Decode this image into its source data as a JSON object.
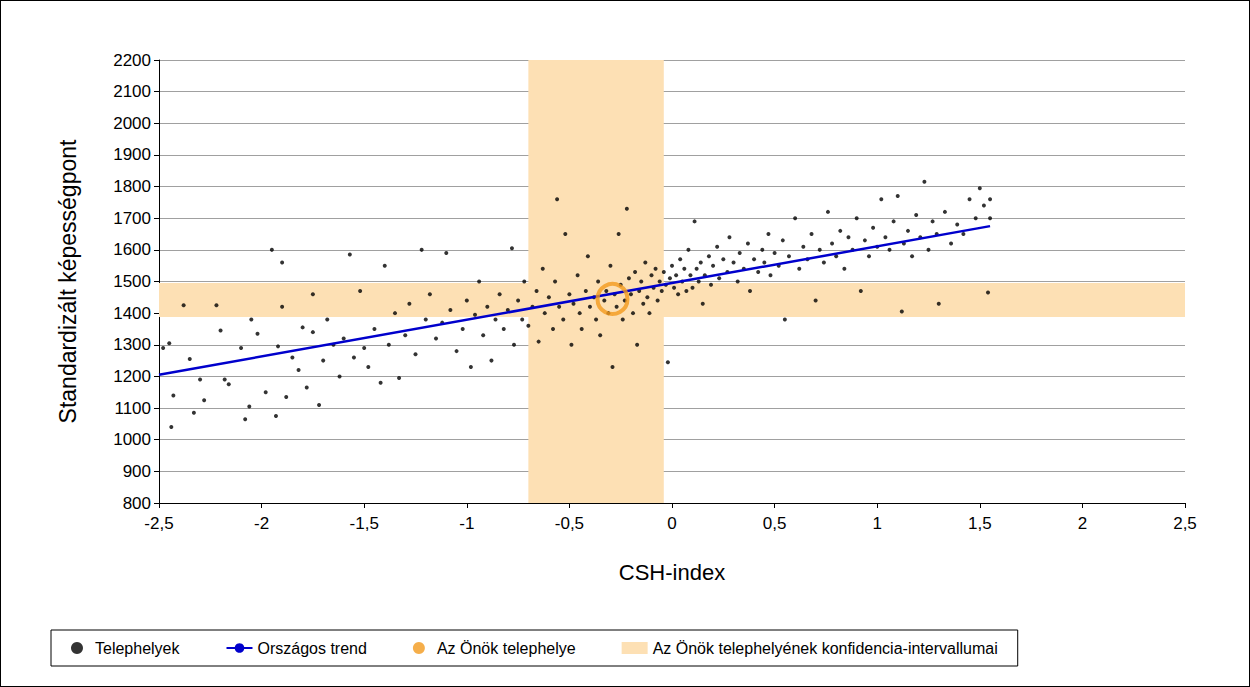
{
  "chart_data": {
    "type": "scatter",
    "x_label": "CSH-index",
    "y_label": "Standardizált képességpont",
    "xlim": [
      -2.5,
      2.5
    ],
    "ylim": [
      800,
      2200
    ],
    "xticks": [
      {
        "value": -2.5,
        "label": "-2,5"
      },
      -2,
      {
        "value": -1.5,
        "label": "-1,5"
      },
      -1,
      {
        "value": -0.5,
        "label": "-0,5"
      },
      0,
      {
        "value": 0.5,
        "label": "0,5"
      },
      1,
      {
        "value": 1.5,
        "label": "1,5"
      },
      2,
      {
        "value": 2.5,
        "label": "2,5"
      }
    ],
    "yticks": [
      800,
      900,
      1000,
      1100,
      1200,
      1300,
      1400,
      1500,
      1600,
      1700,
      1800,
      1900,
      2000,
      2100,
      2200
    ],
    "grid": true,
    "legend": "bottom",
    "series": [
      {
        "name": "Telephelyek",
        "type": "scatter",
        "color": "#000000",
        "marker": "circle",
        "x": [
          -2.48,
          -2.45,
          -2.43,
          -2.44,
          -2.38,
          -2.35,
          -2.33,
          -2.3,
          -2.28,
          -2.22,
          -2.2,
          -2.18,
          -2.16,
          -2.1,
          -2.08,
          -2.06,
          -2.05,
          -2.02,
          -1.98,
          -1.95,
          -1.93,
          -1.92,
          -1.9,
          -1.9,
          -1.88,
          -1.85,
          -1.82,
          -1.8,
          -1.78,
          -1.75,
          -1.75,
          -1.72,
          -1.7,
          -1.68,
          -1.65,
          -1.62,
          -1.6,
          -1.57,
          -1.55,
          -1.52,
          -1.5,
          -1.48,
          -1.45,
          -1.42,
          -1.4,
          -1.38,
          -1.35,
          -1.33,
          -1.3,
          -1.28,
          -1.25,
          -1.22,
          -1.2,
          -1.18,
          -1.15,
          -1.12,
          -1.1,
          -1.08,
          -1.05,
          -1.02,
          -1.0,
          -0.98,
          -0.96,
          -0.94,
          -0.92,
          -0.9,
          -0.88,
          -0.86,
          -0.84,
          -0.82,
          -0.8,
          -0.78,
          -0.77,
          -0.75,
          -0.73,
          -0.72,
          -0.7,
          -0.68,
          -0.66,
          -0.65,
          -0.63,
          -0.62,
          -0.6,
          -0.58,
          -0.57,
          -0.56,
          -0.55,
          -0.53,
          -0.52,
          -0.5,
          -0.49,
          -0.48,
          -0.46,
          -0.45,
          -0.44,
          -0.42,
          -0.41,
          -0.4,
          -0.38,
          -0.37,
          -0.36,
          -0.35,
          -0.33,
          -0.32,
          -0.31,
          -0.3,
          -0.29,
          -0.28,
          -0.27,
          -0.26,
          -0.25,
          -0.24,
          -0.23,
          -0.22,
          -0.21,
          -0.2,
          -0.19,
          -0.18,
          -0.17,
          -0.16,
          -0.15,
          -0.14,
          -0.13,
          -0.12,
          -0.11,
          -0.1,
          -0.09,
          -0.08,
          -0.07,
          -0.06,
          -0.05,
          -0.04,
          -0.03,
          -0.02,
          -0.01,
          0,
          0.01,
          0.02,
          0.03,
          0.04,
          0.05,
          0.06,
          0.07,
          0.08,
          0.09,
          0.1,
          0.11,
          0.12,
          0.13,
          0.14,
          0.15,
          0.16,
          0.18,
          0.19,
          0.2,
          0.22,
          0.23,
          0.25,
          0.27,
          0.28,
          0.3,
          0.32,
          0.33,
          0.35,
          0.37,
          0.38,
          0.4,
          0.42,
          0.44,
          0.45,
          0.47,
          0.48,
          0.5,
          0.52,
          0.54,
          0.55,
          0.57,
          0.6,
          0.62,
          0.64,
          0.66,
          0.68,
          0.7,
          0.72,
          0.74,
          0.76,
          0.78,
          0.8,
          0.82,
          0.84,
          0.86,
          0.88,
          0.9,
          0.92,
          0.94,
          0.96,
          0.98,
          1.0,
          1.02,
          1.04,
          1.06,
          1.08,
          1.1,
          1.12,
          1.13,
          1.15,
          1.17,
          1.19,
          1.21,
          1.23,
          1.25,
          1.27,
          1.29,
          1.3,
          1.33,
          1.36,
          1.39,
          1.42,
          1.45,
          1.48,
          1.5,
          1.52,
          1.54,
          1.55,
          1.55
        ],
        "values": [
          1290,
          1305,
          1140,
          1040,
          1425,
          1255,
          1085,
          1190,
          1125,
          1425,
          1345,
          1190,
          1175,
          1290,
          1065,
          1105,
          1380,
          1335,
          1150,
          1600,
          1075,
          1295,
          1560,
          1420,
          1135,
          1260,
          1220,
          1355,
          1165,
          1460,
          1340,
          1110,
          1250,
          1380,
          1300,
          1200,
          1320,
          1585,
          1260,
          1470,
          1290,
          1230,
          1350,
          1180,
          1550,
          1300,
          1400,
          1195,
          1330,
          1430,
          1270,
          1600,
          1380,
          1460,
          1320,
          1370,
          1590,
          1410,
          1280,
          1350,
          1440,
          1230,
          1395,
          1500,
          1330,
          1420,
          1250,
          1380,
          1460,
          1350,
          1410,
          1605,
          1300,
          1440,
          1380,
          1500,
          1360,
          1420,
          1470,
          1310,
          1540,
          1400,
          1450,
          1350,
          1500,
          1760,
          1420,
          1380,
          1650,
          1460,
          1300,
          1430,
          1520,
          1400,
          1350,
          1470,
          1580,
          1420,
          1450,
          1380,
          1500,
          1330,
          1440,
          1470,
          1400,
          1550,
          1230,
          1460,
          1420,
          1650,
          1490,
          1380,
          1440,
          1730,
          1510,
          1460,
          1400,
          1530,
          1300,
          1470,
          1500,
          1430,
          1560,
          1450,
          1400,
          1520,
          1480,
          1540,
          1440,
          1500,
          1470,
          1530,
          1490,
          1245,
          1510,
          1550,
          1480,
          1520,
          1460,
          1570,
          1500,
          1540,
          1470,
          1600,
          1520,
          1480,
          1690,
          1540,
          1500,
          1560,
          1430,
          1520,
          1580,
          1490,
          1550,
          1610,
          1510,
          1570,
          1530,
          1640,
          1560,
          1500,
          1590,
          1540,
          1620,
          1470,
          1570,
          1530,
          1600,
          1560,
          1650,
          1520,
          1590,
          1550,
          1630,
          1380,
          1580,
          1700,
          1540,
          1610,
          1570,
          1650,
          1440,
          1600,
          1560,
          1720,
          1620,
          1580,
          1660,
          1540,
          1640,
          1600,
          1700,
          1470,
          1630,
          1580,
          1670,
          1610,
          1760,
          1640,
          1600,
          1690,
          1770,
          1405,
          1620,
          1660,
          1580,
          1710,
          1640,
          1815,
          1600,
          1690,
          1650,
          1430,
          1720,
          1620,
          1680,
          1650,
          1760,
          1700,
          1795,
          1740,
          1465,
          1700,
          1760
        ]
      },
      {
        "name": "Országos trend",
        "type": "line",
        "color": "#0000cc",
        "line_style": "solid",
        "x": [
          -2.5,
          1.55
        ],
        "values": [
          1205,
          1675
        ]
      },
      {
        "name": "Az Önök telephelye",
        "type": "scatter",
        "color": "#f39a1d",
        "marker": "ring",
        "x": [
          -0.29
        ],
        "values": [
          1445
        ]
      },
      {
        "name": "Az Önök telephelyének konfidencia-intervallumai",
        "type": "band",
        "color": "#fde0b4",
        "x_range": [
          -0.7,
          -0.04
        ],
        "y_range": [
          1388,
          1495
        ]
      }
    ]
  }
}
